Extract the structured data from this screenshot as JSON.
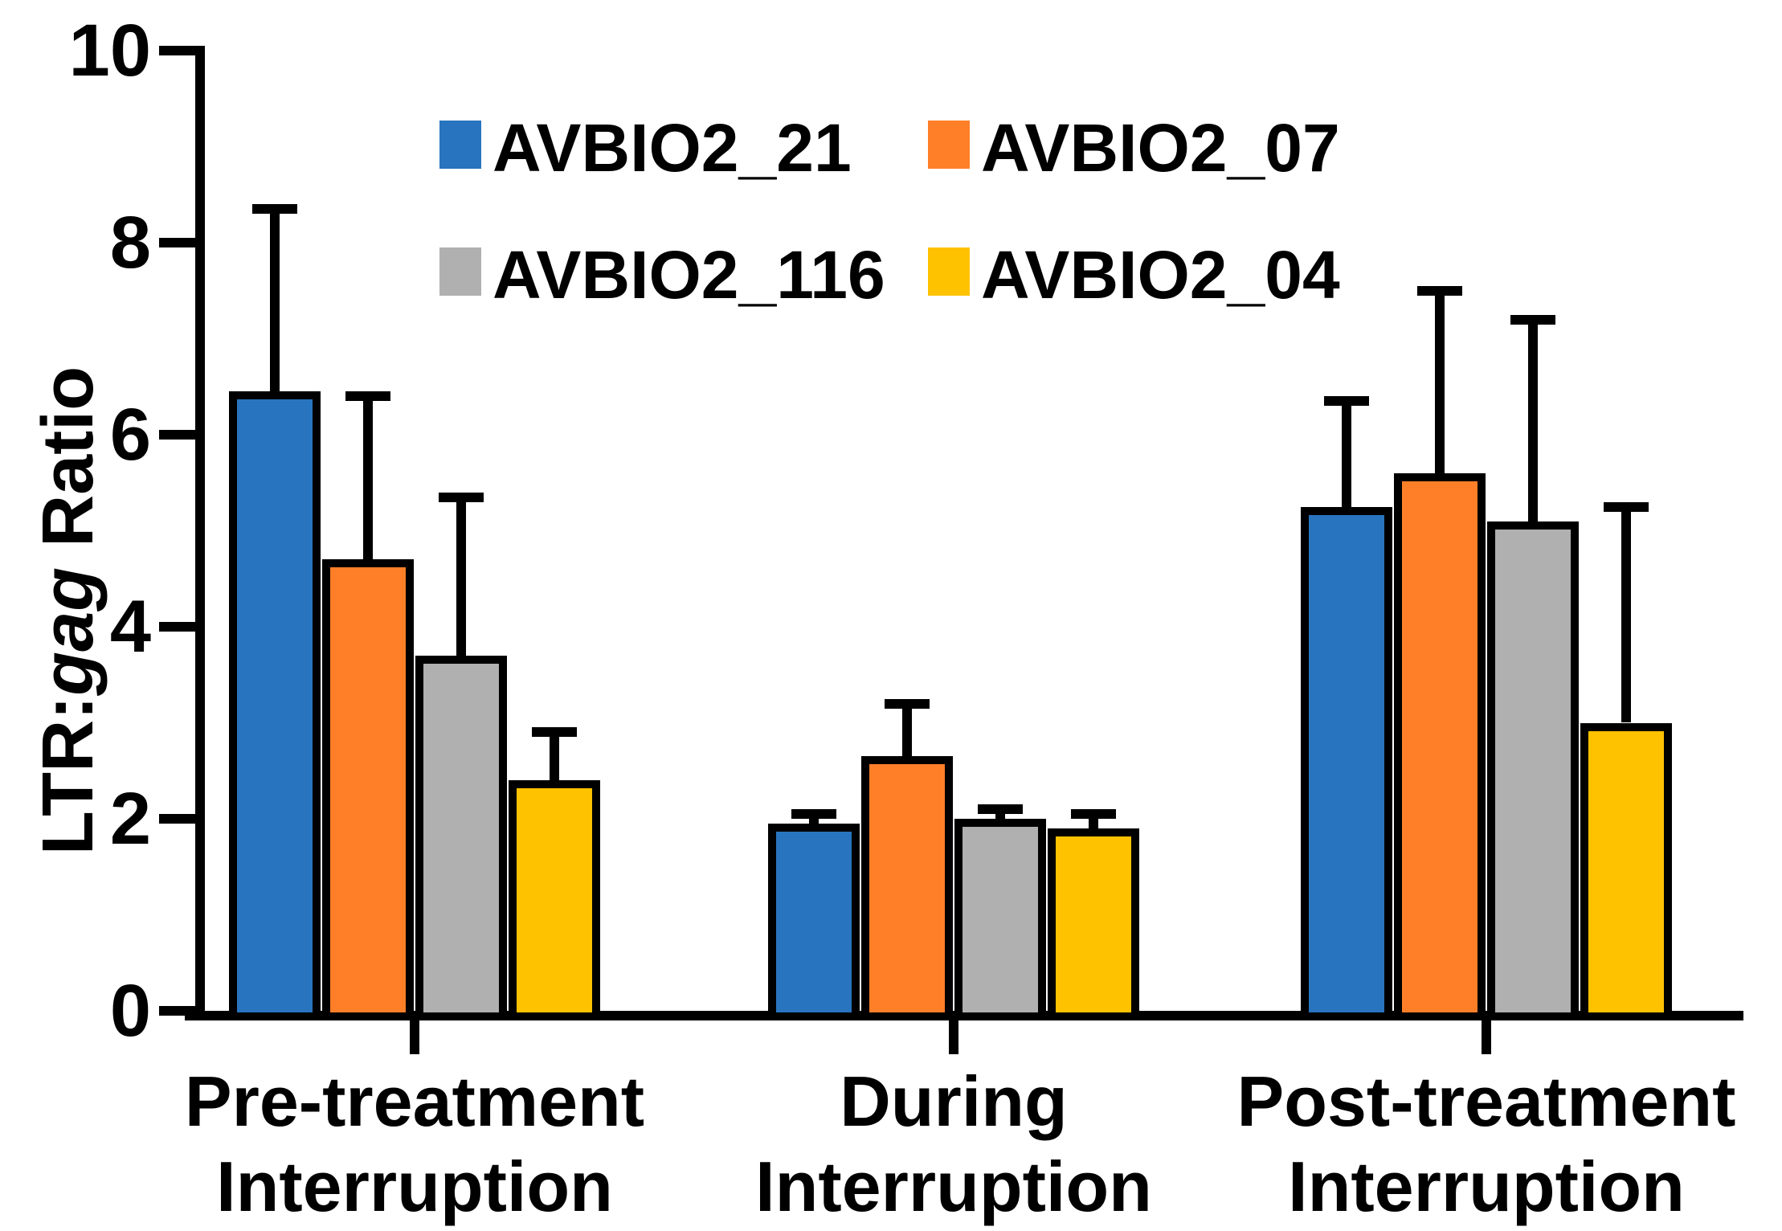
{
  "chart_data": {
    "type": "bar",
    "title": "",
    "ylabel": {
      "prefix": "LTR:",
      "italic": "gag",
      "suffix": " Ratio"
    },
    "xlabel": "",
    "ylim": [
      0,
      10
    ],
    "yticks": [
      0,
      2,
      4,
      6,
      8,
      10
    ],
    "grid": false,
    "legend_position": "top-center",
    "categories": [
      [
        "Pre-treatment",
        "Interruption"
      ],
      [
        "During",
        "Interruption"
      ],
      [
        "Post-treatment",
        "Interruption"
      ]
    ],
    "series": [
      {
        "name": "AVBIO2_21",
        "color": "#2874BE",
        "values": [
          6.45,
          1.95,
          5.25
        ],
        "error_plus": [
          1.95,
          0.15,
          1.15
        ]
      },
      {
        "name": "AVBIO2_07",
        "color": "#FF7F28",
        "values": [
          4.7,
          2.65,
          5.6
        ],
        "error_plus": [
          1.75,
          0.6,
          1.95
        ]
      },
      {
        "name": "AVBIO2_116",
        "color": "#B0B0B0",
        "values": [
          3.7,
          2.0,
          5.1
        ],
        "error_plus": [
          1.7,
          0.15,
          2.15
        ]
      },
      {
        "name": "AVBIO2_04",
        "color": "#FFC200",
        "values": [
          2.4,
          1.9,
          3.0
        ],
        "error_plus": [
          0.55,
          0.2,
          2.3
        ]
      }
    ],
    "legend_rows": [
      [
        "AVBIO2_21",
        "AVBIO2_07"
      ],
      [
        "AVBIO2_116",
        "AVBIO2_04"
      ]
    ],
    "axis_color": "#000000"
  }
}
